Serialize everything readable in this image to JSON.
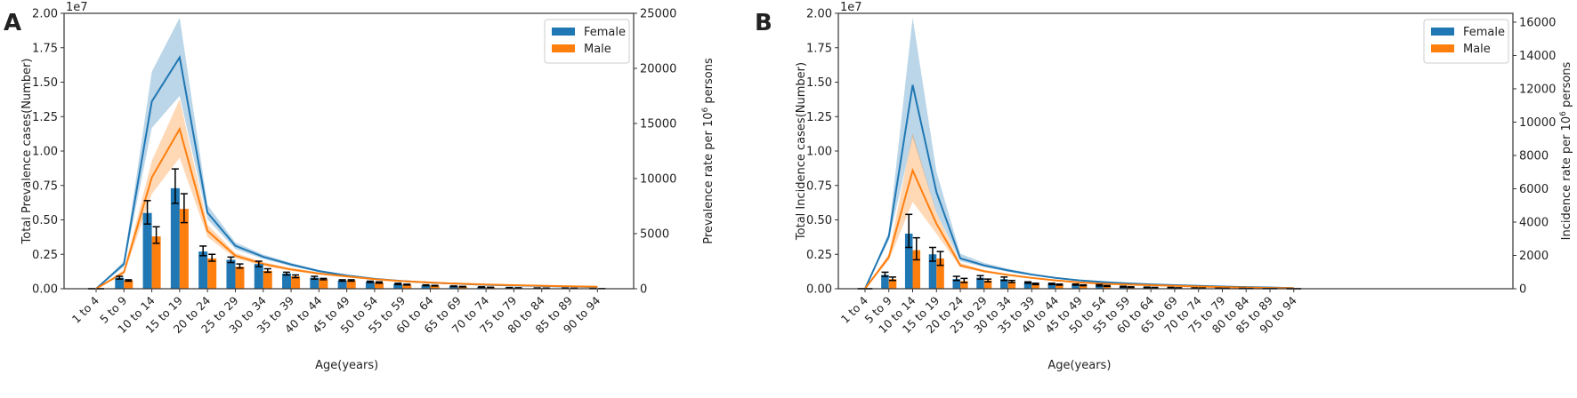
{
  "chart_data": [
    {
      "panel_letter": "A",
      "type": "bar+line",
      "categories": [
        "1 to 4",
        "5 to 9",
        "10 to 14",
        "15 to 19",
        "20 to 24",
        "25 to 29",
        "30 to 34",
        "35 to 39",
        "40 to 44",
        "45 to 49",
        "50 to 54",
        "55 to 59",
        "60 to 64",
        "65 to 69",
        "70 to 74",
        "75 to 79",
        "80 to 84",
        "85 to 89",
        "90 to 94"
      ],
      "xlabel": "Age(years)",
      "ylabel": "Total Prevalence cases(Number)",
      "y_offset_text": "1e7",
      "ylim": [
        0,
        2.0
      ],
      "yticks": [
        "0.00",
        "0.25",
        "0.50",
        "0.75",
        "1.00",
        "1.25",
        "1.50",
        "1.75",
        "2.00"
      ],
      "y2label": {
        "prefix": "Prevalence rate per 10",
        "sup": "6",
        "suffix": " persons"
      },
      "y2lim": [
        0,
        25000
      ],
      "y2ticks": [
        0,
        5000,
        10000,
        15000,
        20000,
        25000
      ],
      "xlim": [
        -1.15,
        19.3
      ],
      "legend": {
        "position": "top-right",
        "entries": [
          "Female",
          "Male"
        ]
      },
      "bars": [
        {
          "name": "Female",
          "color": "#1f77b4",
          "values": [
            0,
            0.08,
            0.55,
            0.73,
            0.27,
            0.21,
            0.18,
            0.11,
            0.08,
            0.06,
            0.05,
            0.035,
            0.025,
            0.018,
            0.012,
            0.008,
            0.005,
            0.003,
            0.001
          ],
          "err_low": [
            0,
            0.07,
            0.47,
            0.62,
            0.24,
            0.19,
            0.16,
            0.1,
            0.07,
            0.055,
            0.045,
            0.03,
            0.022,
            0.016,
            0.01,
            0.007,
            0.004,
            0.002,
            0.001
          ],
          "err_high": [
            0,
            0.09,
            0.64,
            0.87,
            0.31,
            0.23,
            0.2,
            0.12,
            0.09,
            0.065,
            0.055,
            0.04,
            0.028,
            0.02,
            0.014,
            0.009,
            0.006,
            0.004,
            0.001
          ]
        },
        {
          "name": "Male",
          "color": "#ff7f0e",
          "values": [
            0,
            0.06,
            0.38,
            0.58,
            0.22,
            0.16,
            0.13,
            0.09,
            0.07,
            0.06,
            0.045,
            0.03,
            0.022,
            0.015,
            0.01,
            0.006,
            0.004,
            0.002,
            0.001
          ],
          "err_low": [
            0,
            0.055,
            0.33,
            0.48,
            0.2,
            0.15,
            0.12,
            0.08,
            0.065,
            0.055,
            0.04,
            0.027,
            0.02,
            0.013,
            0.009,
            0.005,
            0.003,
            0.002,
            0.001
          ],
          "err_high": [
            0,
            0.065,
            0.45,
            0.69,
            0.25,
            0.18,
            0.145,
            0.1,
            0.075,
            0.065,
            0.05,
            0.033,
            0.024,
            0.017,
            0.011,
            0.007,
            0.005,
            0.003,
            0.001
          ]
        }
      ],
      "lines": [
        {
          "name": "Female rate",
          "color": "#1f77b4",
          "values": [
            0,
            2250,
            17000,
            21000,
            6900,
            3900,
            2900,
            2200,
            1600,
            1200,
            900,
            700,
            550,
            450,
            350,
            300,
            250,
            200,
            150
          ],
          "lower": [
            0,
            2000,
            14600,
            17500,
            6300,
            3600,
            2700,
            2050,
            1500,
            1120,
            840,
            650,
            510,
            420,
            330,
            280,
            230,
            185,
            140
          ],
          "upper": [
            0,
            2500,
            19700,
            24600,
            7600,
            4200,
            3100,
            2350,
            1700,
            1280,
            960,
            750,
            590,
            480,
            370,
            320,
            270,
            215,
            160
          ]
        },
        {
          "name": "Male rate",
          "color": "#ff7f0e",
          "values": [
            0,
            1500,
            10100,
            14500,
            5250,
            3000,
            2250,
            1750,
            1380,
            1120,
            870,
            690,
            560,
            460,
            380,
            320,
            270,
            220,
            180
          ],
          "lower": [
            0,
            1300,
            8600,
            11900,
            4700,
            2750,
            2080,
            1620,
            1280,
            1040,
            810,
            640,
            520,
            430,
            350,
            300,
            250,
            200,
            165
          ],
          "upper": [
            0,
            1700,
            11600,
            17200,
            5800,
            3250,
            2420,
            1880,
            1480,
            1200,
            930,
            740,
            600,
            490,
            410,
            340,
            290,
            240,
            195
          ]
        }
      ]
    },
    {
      "panel_letter": "B",
      "type": "bar+line",
      "categories": [
        "1 to 4",
        "5 to 9",
        "10 to 14",
        "15 to 19",
        "20 to 24",
        "25 to 29",
        "30 to 34",
        "35 to 39",
        "40 to 44",
        "45 to 49",
        "50 to 54",
        "55 to 59",
        "60 to 64",
        "65 to 69",
        "70 to 74",
        "75 to 79",
        "80 to 84",
        "85 to 89",
        "90 to 94"
      ],
      "xlabel": "Age(years)",
      "ylabel": "Total Incidence cases(Number)",
      "y_offset_text": "1e7",
      "ylim": [
        0,
        2.0
      ],
      "yticks": [
        "0.00",
        "0.25",
        "0.50",
        "0.75",
        "1.00",
        "1.25",
        "1.50",
        "1.75",
        "2.00"
      ],
      "y2label": {
        "prefix": "Incidence rate per 10",
        "sup": "6",
        "suffix": " persons"
      },
      "y2lim": [
        0,
        16530
      ],
      "y2ticks": [
        0,
        2000,
        4000,
        6000,
        8000,
        10000,
        12000,
        14000,
        16000
      ],
      "xlim": [
        -1.12,
        27.2
      ],
      "legend": {
        "position": "top-right",
        "entries": [
          "Female",
          "Male"
        ]
      },
      "bars": [
        {
          "name": "Female",
          "color": "#1f77b4",
          "values": [
            0,
            0.1,
            0.4,
            0.25,
            0.07,
            0.08,
            0.07,
            0.045,
            0.035,
            0.03,
            0.025,
            0.015,
            0.01,
            0.008,
            0.005,
            0.003,
            0.002,
            0.001,
            0
          ],
          "err_low": [
            0,
            0.09,
            0.3,
            0.2,
            0.06,
            0.07,
            0.06,
            0.04,
            0.03,
            0.026,
            0.02,
            0.012,
            0.008,
            0.006,
            0.004,
            0.002,
            0.001,
            0.001,
            0
          ],
          "err_high": [
            0,
            0.12,
            0.54,
            0.3,
            0.09,
            0.095,
            0.085,
            0.05,
            0.04,
            0.034,
            0.03,
            0.018,
            0.012,
            0.01,
            0.006,
            0.004,
            0.003,
            0.001,
            0
          ]
        },
        {
          "name": "Male",
          "color": "#ff7f0e",
          "values": [
            0,
            0.07,
            0.28,
            0.22,
            0.055,
            0.06,
            0.05,
            0.035,
            0.03,
            0.025,
            0.02,
            0.012,
            0.008,
            0.006,
            0.004,
            0.002,
            0.001,
            0.001,
            0
          ],
          "err_low": [
            0,
            0.06,
            0.21,
            0.17,
            0.045,
            0.05,
            0.045,
            0.03,
            0.026,
            0.022,
            0.017,
            0.01,
            0.006,
            0.005,
            0.003,
            0.002,
            0.001,
            0.001,
            0
          ],
          "err_high": [
            0,
            0.085,
            0.37,
            0.27,
            0.075,
            0.07,
            0.06,
            0.04,
            0.034,
            0.028,
            0.023,
            0.014,
            0.01,
            0.007,
            0.005,
            0.003,
            0.002,
            0.001,
            0
          ]
        }
      ],
      "lines": [
        {
          "name": "Female rate",
          "color": "#1f77b4",
          "values": [
            0,
            3140,
            12230,
            5790,
            1820,
            1400,
            1100,
            850,
            650,
            500,
            400,
            320,
            260,
            210,
            170,
            130,
            100,
            70,
            40
          ],
          "lower": [
            0,
            2900,
            9090,
            4550,
            1650,
            1300,
            1020,
            790,
            600,
            465,
            370,
            295,
            240,
            195,
            155,
            120,
            90,
            62,
            35
          ],
          "upper": [
            0,
            3400,
            16280,
            7020,
            2100,
            1550,
            1200,
            920,
            700,
            540,
            430,
            345,
            280,
            225,
            185,
            140,
            110,
            78,
            45
          ]
        },
        {
          "name": "Male rate",
          "color": "#ff7f0e",
          "values": [
            0,
            1900,
            7100,
            3900,
            1400,
            1050,
            830,
            650,
            500,
            380,
            300,
            250,
            210,
            170,
            130,
            100,
            70,
            45,
            30
          ],
          "lower": [
            0,
            1700,
            5210,
            3300,
            1280,
            970,
            770,
            600,
            460,
            350,
            280,
            230,
            195,
            155,
            120,
            90,
            62,
            40,
            26
          ],
          "upper": [
            0,
            2100,
            9340,
            4550,
            1550,
            1130,
            890,
            700,
            540,
            410,
            320,
            270,
            225,
            185,
            140,
            110,
            78,
            50,
            34
          ]
        }
      ]
    }
  ]
}
